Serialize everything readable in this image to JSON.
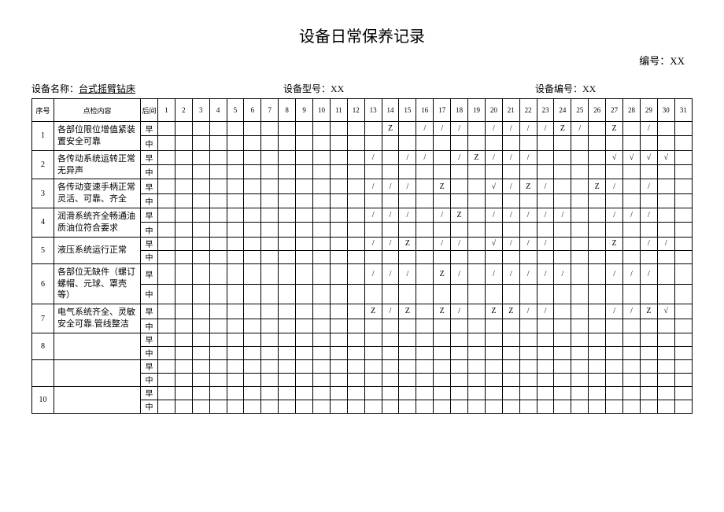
{
  "title": "设备日常保养记录",
  "doc_no_label": "编号：",
  "doc_no_value": "XX",
  "fields": {
    "name_label": "设备名称：",
    "name_value": "台式摇臂钻床",
    "model_label": "设备型号：",
    "model_value": "XX",
    "id_label": "设备编号：",
    "id_value": "XX"
  },
  "headers": {
    "seq": "序号",
    "content": "点检内容",
    "shift": "后间"
  },
  "days": [
    "1",
    "2",
    "3",
    "4",
    "5",
    "6",
    "7",
    "8",
    "9",
    "10",
    "11",
    "12",
    "13",
    "14",
    "15",
    "16",
    "17",
    "18",
    "19",
    "20",
    "21",
    "22",
    "23",
    "24",
    "25",
    "26",
    "27",
    "28",
    "29",
    "30",
    "31"
  ],
  "shift_labels": {
    "morning": "早",
    "mid": "中"
  },
  "rows": [
    {
      "seq": "1",
      "content": "各部位限位增值紧装置安全可靠",
      "morning": {
        "14": "Z",
        "16": "/",
        "17": "/",
        "18": "/",
        "20": "/",
        "21": "/",
        "22": "/",
        "23": "/",
        "24": "Z",
        "25": "/",
        "27": "Z",
        "29": "/"
      },
      "mid": {}
    },
    {
      "seq": "2",
      "content": "各传动系统运转正常无异声",
      "morning": {
        "13": "/",
        "15": "/",
        "16": "/",
        "18": "/",
        "19": "Z",
        "20": "/",
        "21": "/",
        "22": "/",
        "27": "√",
        "28": "√",
        "29": "√",
        "30": "√"
      },
      "mid": {}
    },
    {
      "seq": "3",
      "content": "各传动变速手柄正常灵活、可靠、齐全",
      "morning": {
        "13": "/",
        "14": "/",
        "15": "/",
        "17": "Z",
        "20": "√",
        "21": "/",
        "22": "Z",
        "23": "/",
        "26": "Z",
        "27": "/",
        "29": "/"
      },
      "mid": {}
    },
    {
      "seq": "4",
      "content": "润滑系统齐全畅通油质油位符合要求",
      "morning": {
        "13": "/",
        "14": "/",
        "15": "/",
        "17": "/",
        "18": "Z",
        "20": "/",
        "21": "/",
        "22": "/",
        "23": "/",
        "24": "/",
        "27": "/",
        "28": "/",
        "29": "/"
      },
      "mid": {}
    },
    {
      "seq": "5",
      "content": "液压系统运行正常",
      "morning": {
        "13": "/",
        "14": "/",
        "15": "Z",
        "17": "/",
        "18": "/",
        "20": "√",
        "21": "/",
        "22": "/",
        "23": "/",
        "27": "Z",
        "29": "/",
        "30": "/"
      },
      "mid": {}
    },
    {
      "seq": "6",
      "content": "各部位无缺件（螺订螺帽、元球、罩壳等）",
      "morning": {
        "13": "/",
        "14": "/",
        "15": "/",
        "17": "Z",
        "18": "/",
        "20": "/",
        "21": "/",
        "22": "/",
        "23": "/",
        "24": "/",
        "27": "/",
        "28": "/",
        "29": "/"
      },
      "mid": {}
    },
    {
      "seq": "7",
      "content": "电气系统齐全、灵敏安全可靠.管线整洁",
      "morning": {
        "13": "Z",
        "14": "/",
        "15": "Z",
        "17": "Z",
        "18": "/",
        "20": "Z",
        "21": "Z",
        "22": "/",
        "23": "/",
        "27": "/",
        "28": "/",
        "29": "Z",
        "30": "√"
      },
      "mid": {}
    },
    {
      "seq": "8",
      "content": "",
      "morning": {},
      "mid": {}
    },
    {
      "seq": "",
      "content": "",
      "morning": {},
      "mid": {}
    },
    {
      "seq": "10",
      "content": "",
      "morning": {},
      "mid": {}
    }
  ]
}
